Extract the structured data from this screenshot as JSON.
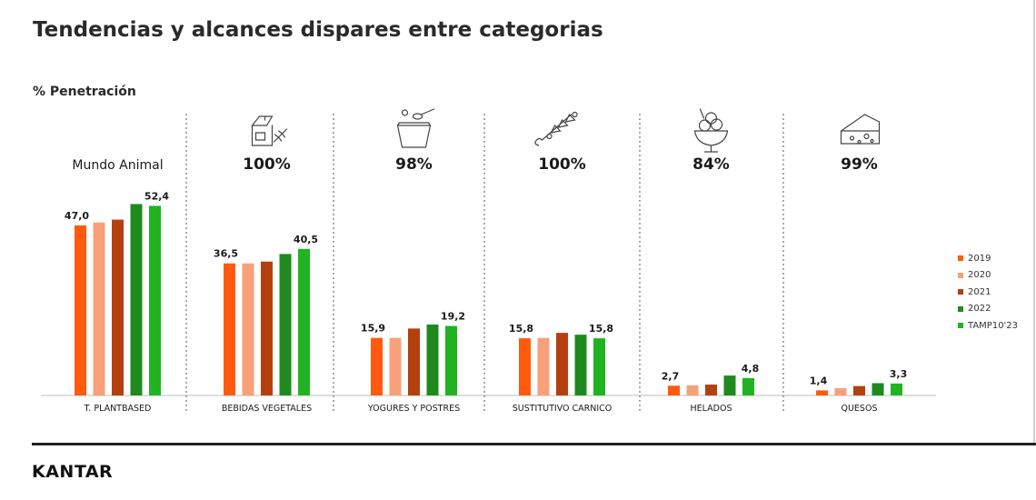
{
  "title": "Tendencias y alcances dispares entre categorias",
  "subtitle": "% Penetración",
  "brand": "KANTAR",
  "colors": {
    "2019": "#ff5a0d",
    "2020": "#f7a07a",
    "2021": "#b5400f",
    "2022": "#1e8a1e",
    "TAMP10'23": "#22b322"
  },
  "chart_data": {
    "type": "bar",
    "title": "Tendencias y alcances dispares entre categorias",
    "ylabel": "% Penetración",
    "legend_position": "right",
    "series_names": [
      "2019",
      "2020",
      "2021",
      "2022",
      "TAMP10'23"
    ],
    "groups": [
      {
        "category": "T. PLANTBASED",
        "header": "Mundo Animal",
        "icon": "",
        "values": [
          47.0,
          47.8,
          48.6,
          52.9,
          52.4
        ],
        "labels": [
          "47,0",
          "",
          "",
          "",
          "52,4"
        ]
      },
      {
        "category": "BEBIDAS VEGETALES",
        "header": "100%",
        "icon": "milk-carton-icon",
        "values": [
          36.5,
          36.5,
          37.0,
          39.1,
          40.5
        ],
        "labels": [
          "36,5",
          "",
          "",
          "",
          "40,5"
        ]
      },
      {
        "category": "YOGURES  Y POSTRES",
        "header": "98%",
        "icon": "yogurt-cup-icon",
        "values": [
          15.9,
          15.9,
          18.5,
          19.6,
          19.2
        ],
        "labels": [
          "15,9",
          "",
          "",
          "",
          "19,2"
        ]
      },
      {
        "category": "SUSTITUTIVO CARNICO",
        "header": "100%",
        "icon": "skewer-icon",
        "values": [
          15.8,
          15.9,
          17.3,
          16.8,
          15.8
        ],
        "labels": [
          "15,8",
          "",
          "",
          "",
          "15,8"
        ]
      },
      {
        "category": "HELADOS",
        "header": "84%",
        "icon": "ice-cream-cup-icon",
        "values": [
          2.7,
          2.8,
          3.0,
          5.5,
          4.8
        ],
        "labels": [
          "2,7",
          "",
          "",
          "",
          "4,8"
        ]
      },
      {
        "category": "QUESOS",
        "header": "99%",
        "icon": "cheese-icon",
        "values": [
          1.4,
          2.0,
          2.6,
          3.4,
          3.3
        ],
        "labels": [
          "1,4",
          "",
          "",
          "",
          "3,3"
        ]
      }
    ]
  }
}
